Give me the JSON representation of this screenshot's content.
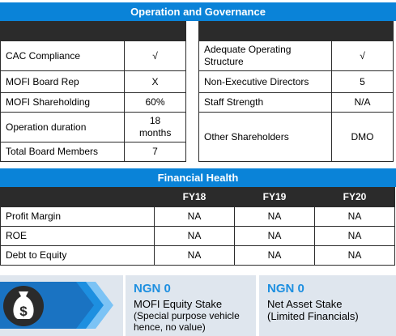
{
  "operation": {
    "title": "Operation and Governance",
    "rows": [
      {
        "left_label": "CAC Compliance",
        "left_value": "√",
        "right_label": "Adequate Operating Structure",
        "right_value": "√"
      },
      {
        "left_label": "MOFI Board Rep",
        "left_value": "X",
        "right_label": "Non-Executive Directors",
        "right_value": "5"
      },
      {
        "left_label": "MOFI Shareholding",
        "left_value": "60%",
        "right_label": "Staff Strength",
        "right_value": "N/A"
      },
      {
        "left_label": "Operation duration",
        "left_value": "18 months",
        "right_label": "Other Shareholders",
        "right_value": "DMO"
      },
      {
        "left_label": "Total Board Members",
        "left_value": "7"
      }
    ]
  },
  "financial": {
    "title": "Financial Health",
    "headers": [
      "FY18",
      "FY19",
      "FY20"
    ],
    "rows": [
      {
        "label": "Profit Margin",
        "values": [
          "NA",
          "NA",
          "NA"
        ]
      },
      {
        "label": "ROE",
        "values": [
          "NA",
          "NA",
          "NA"
        ]
      },
      {
        "label": "Debt to Equity",
        "values": [
          "NA",
          "NA",
          "NA"
        ]
      }
    ]
  },
  "stakes": {
    "icon": "money-bag-icon",
    "equity": {
      "amount": "NGN 0",
      "label": "MOFI Equity Stake",
      "note": "(Special purpose vehicle hence, no value)"
    },
    "asset": {
      "amount": "NGN 0",
      "label": "Net Asset Stake",
      "note": "(Limited Financials)"
    }
  },
  "colors": {
    "banner": "#0a83d8",
    "header": "#2b2b2b",
    "accent": "#1d8fe0",
    "panel": "#dfe6ee"
  }
}
